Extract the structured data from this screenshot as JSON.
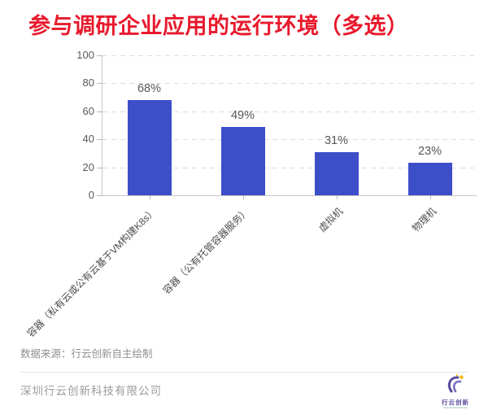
{
  "title": "参与调研企业应用的运行环境（多选）",
  "chart_data": {
    "type": "bar",
    "title": "参与调研企业应用的运行环境（多选）",
    "categories": [
      "容器（私有云或公有云基于VM构建K8s）",
      "容器（公有托管容器服务）",
      "虚拟机",
      "物理机"
    ],
    "values": [
      68,
      49,
      31,
      23
    ],
    "value_labels": [
      "68%",
      "49%",
      "31%",
      "23%"
    ],
    "xlabel": "",
    "ylabel": "",
    "ylim": [
      0,
      100
    ],
    "yticks": [
      0,
      20,
      40,
      60,
      80,
      100
    ],
    "grid": "horizontal-dashed",
    "legend": "none",
    "bar_color": "#3d4ec9",
    "xtick_rotation_deg": 45
  },
  "source_note": "数据来源：行云创新自主绘制",
  "footer": {
    "company_name": "深圳行云创新科技有限公司",
    "logo_text": "行云创新"
  },
  "colors": {
    "title_red": "#e8192c",
    "bar_blue": "#3d4ec9",
    "axis_gray": "#c8c8c8",
    "grid_gray": "#dcdcdc",
    "tick_text": "#595959",
    "category_text": "#4d4d4d",
    "value_text": "#575757",
    "note_text": "#8f8f8f",
    "footer_text": "#9a9a9a",
    "logo_purple": "#5b4a9e",
    "logo_yellow": "#f2b705"
  }
}
